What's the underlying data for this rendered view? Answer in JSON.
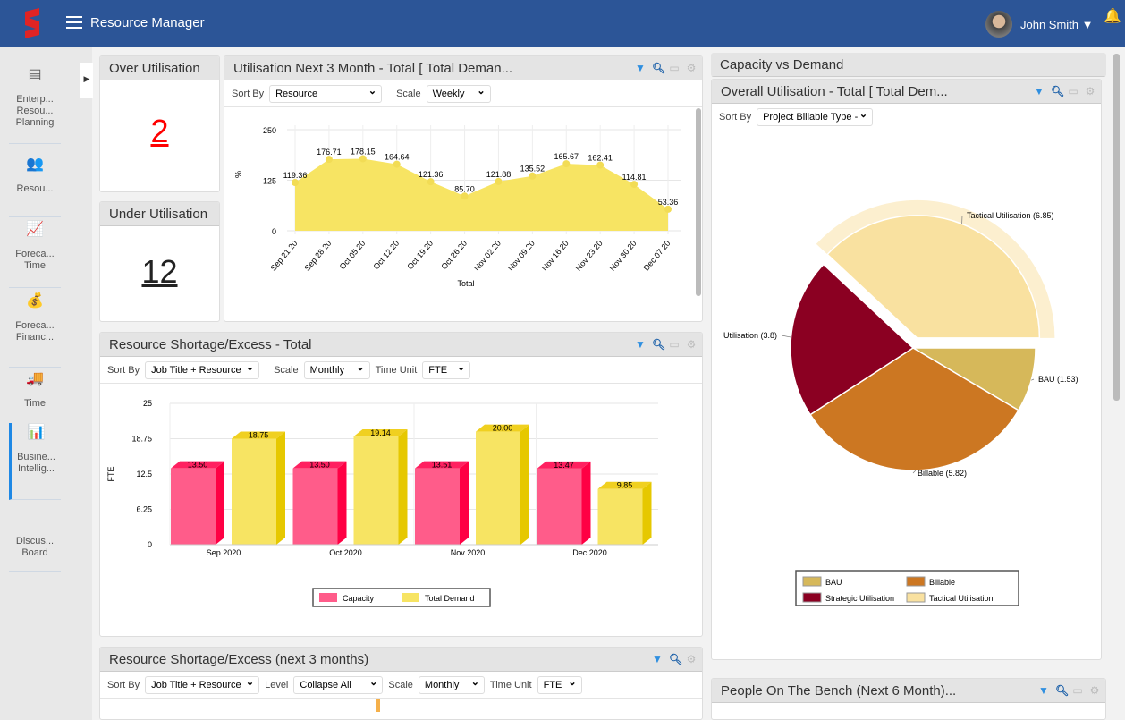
{
  "header": {
    "title": "Resource Manager",
    "user": "John Smith"
  },
  "sidebar": {
    "items": [
      {
        "label": "Enterp... Resou... Planning",
        "icon": "gantt-icon"
      },
      {
        "label": "Resou...",
        "icon": "people-icon"
      },
      {
        "label": "Foreca... Time",
        "icon": "line-chart-icon"
      },
      {
        "label": "Foreca... Financ...",
        "icon": "money-network-icon"
      },
      {
        "label": "Time",
        "icon": "truck-clock-icon"
      },
      {
        "label": "Busine... Intellig...",
        "icon": "bi-chart-icon",
        "active": true
      },
      {
        "label": "Discus... Board",
        "icon": ""
      }
    ]
  },
  "over": {
    "title": "Over Utilisation",
    "value": "2",
    "color": "#ff0000"
  },
  "under": {
    "title": "Under Utilisation",
    "value": "12"
  },
  "util": {
    "title": "Utilisation Next 3 Month - Total [ Total Deman...",
    "sort_label": "Sort By",
    "sort_value": "Resource",
    "scale_label": "Scale",
    "scale_value": "Weekly"
  },
  "short": {
    "title": "Resource Shortage/Excess - Total",
    "sort_label": "Sort By",
    "sort_value": "Job Title + Resource",
    "scale_label": "Scale",
    "scale_value": "Monthly",
    "unit_label": "Time Unit",
    "unit_value": "FTE"
  },
  "short3": {
    "title": "Resource Shortage/Excess (next 3 months)",
    "sort_label": "Sort By",
    "sort_value": "Job Title + Resource",
    "level_label": "Level",
    "level_value": "Collapse All",
    "scale_label": "Scale",
    "scale_value": "Monthly",
    "unit_label": "Time Unit",
    "unit_value": "FTE"
  },
  "cvd": {
    "title": "Capacity vs Demand"
  },
  "overall": {
    "title": "Overall Utilisation - Total [ Total Dem...",
    "sort_label": "Sort By",
    "sort_value": "Project Billable Type -"
  },
  "bench": {
    "title": "People On The Bench (Next 6 Month)..."
  },
  "chart_data": [
    {
      "type": "area",
      "xlabel": "Total",
      "ylabel": "%",
      "ylim": [
        0,
        250
      ],
      "yticks": [
        0,
        125,
        250
      ],
      "color": "#f7e463",
      "x": [
        "Sep 21 20",
        "Sep 28 20",
        "Oct 05 20",
        "Oct 12 20",
        "Oct 19 20",
        "Oct 26 20",
        "Nov 02 20",
        "Nov 09 20",
        "Nov 16 20",
        "Nov 23 20",
        "Nov 30 20",
        "Dec 07 20"
      ],
      "values": [
        119.36,
        176.71,
        178.15,
        164.64,
        121.36,
        85.7,
        121.88,
        135.52,
        165.67,
        162.41,
        114.81,
        53.36
      ],
      "labels": [
        "119.36",
        "176.71",
        "178.15",
        "164.64",
        "121.36",
        "85.70",
        "121.88",
        "135.52",
        "165.67",
        "162.41",
        "114.81",
        "53.36"
      ]
    },
    {
      "type": "bar",
      "ylabel": "FTE",
      "ylim": [
        0,
        25
      ],
      "yticks": [
        "0",
        "6.25",
        "12.5",
        "18.75",
        "25"
      ],
      "categories": [
        "Sep 2020",
        "Oct 2020",
        "Nov 2020",
        "Dec 2020"
      ],
      "series": [
        {
          "name": "Capacity",
          "color": "#ff5c8a",
          "values": [
            13.5,
            13.5,
            13.51,
            13.47
          ],
          "labels": [
            "13.50",
            "13.50",
            "13.51",
            "13.47"
          ]
        },
        {
          "name": "Total Demand",
          "color": "#f7e463",
          "values": [
            18.75,
            19.14,
            20.0,
            9.85
          ],
          "labels": [
            "18.75",
            "19.14",
            "20.00",
            "9.85"
          ]
        }
      ],
      "legend": "bottom"
    },
    {
      "type": "pie",
      "legend": "bottom",
      "slices": [
        {
          "name": "BAU",
          "value": 1.53,
          "label": "BAU (1.53)",
          "color": "#d6b85a"
        },
        {
          "name": "Billable",
          "value": 5.82,
          "label": "Billable (5.82)",
          "color": "#cc7722"
        },
        {
          "name": "Strategic Utilisation",
          "value": 3.8,
          "label": "Utilisation (3.8)",
          "color": "#8b0022"
        },
        {
          "name": "Tactical Utilisation",
          "value": 6.85,
          "label": "Tactical Utilisation (6.85)",
          "color": "#f9e1a0",
          "exploded": true
        }
      ]
    }
  ]
}
